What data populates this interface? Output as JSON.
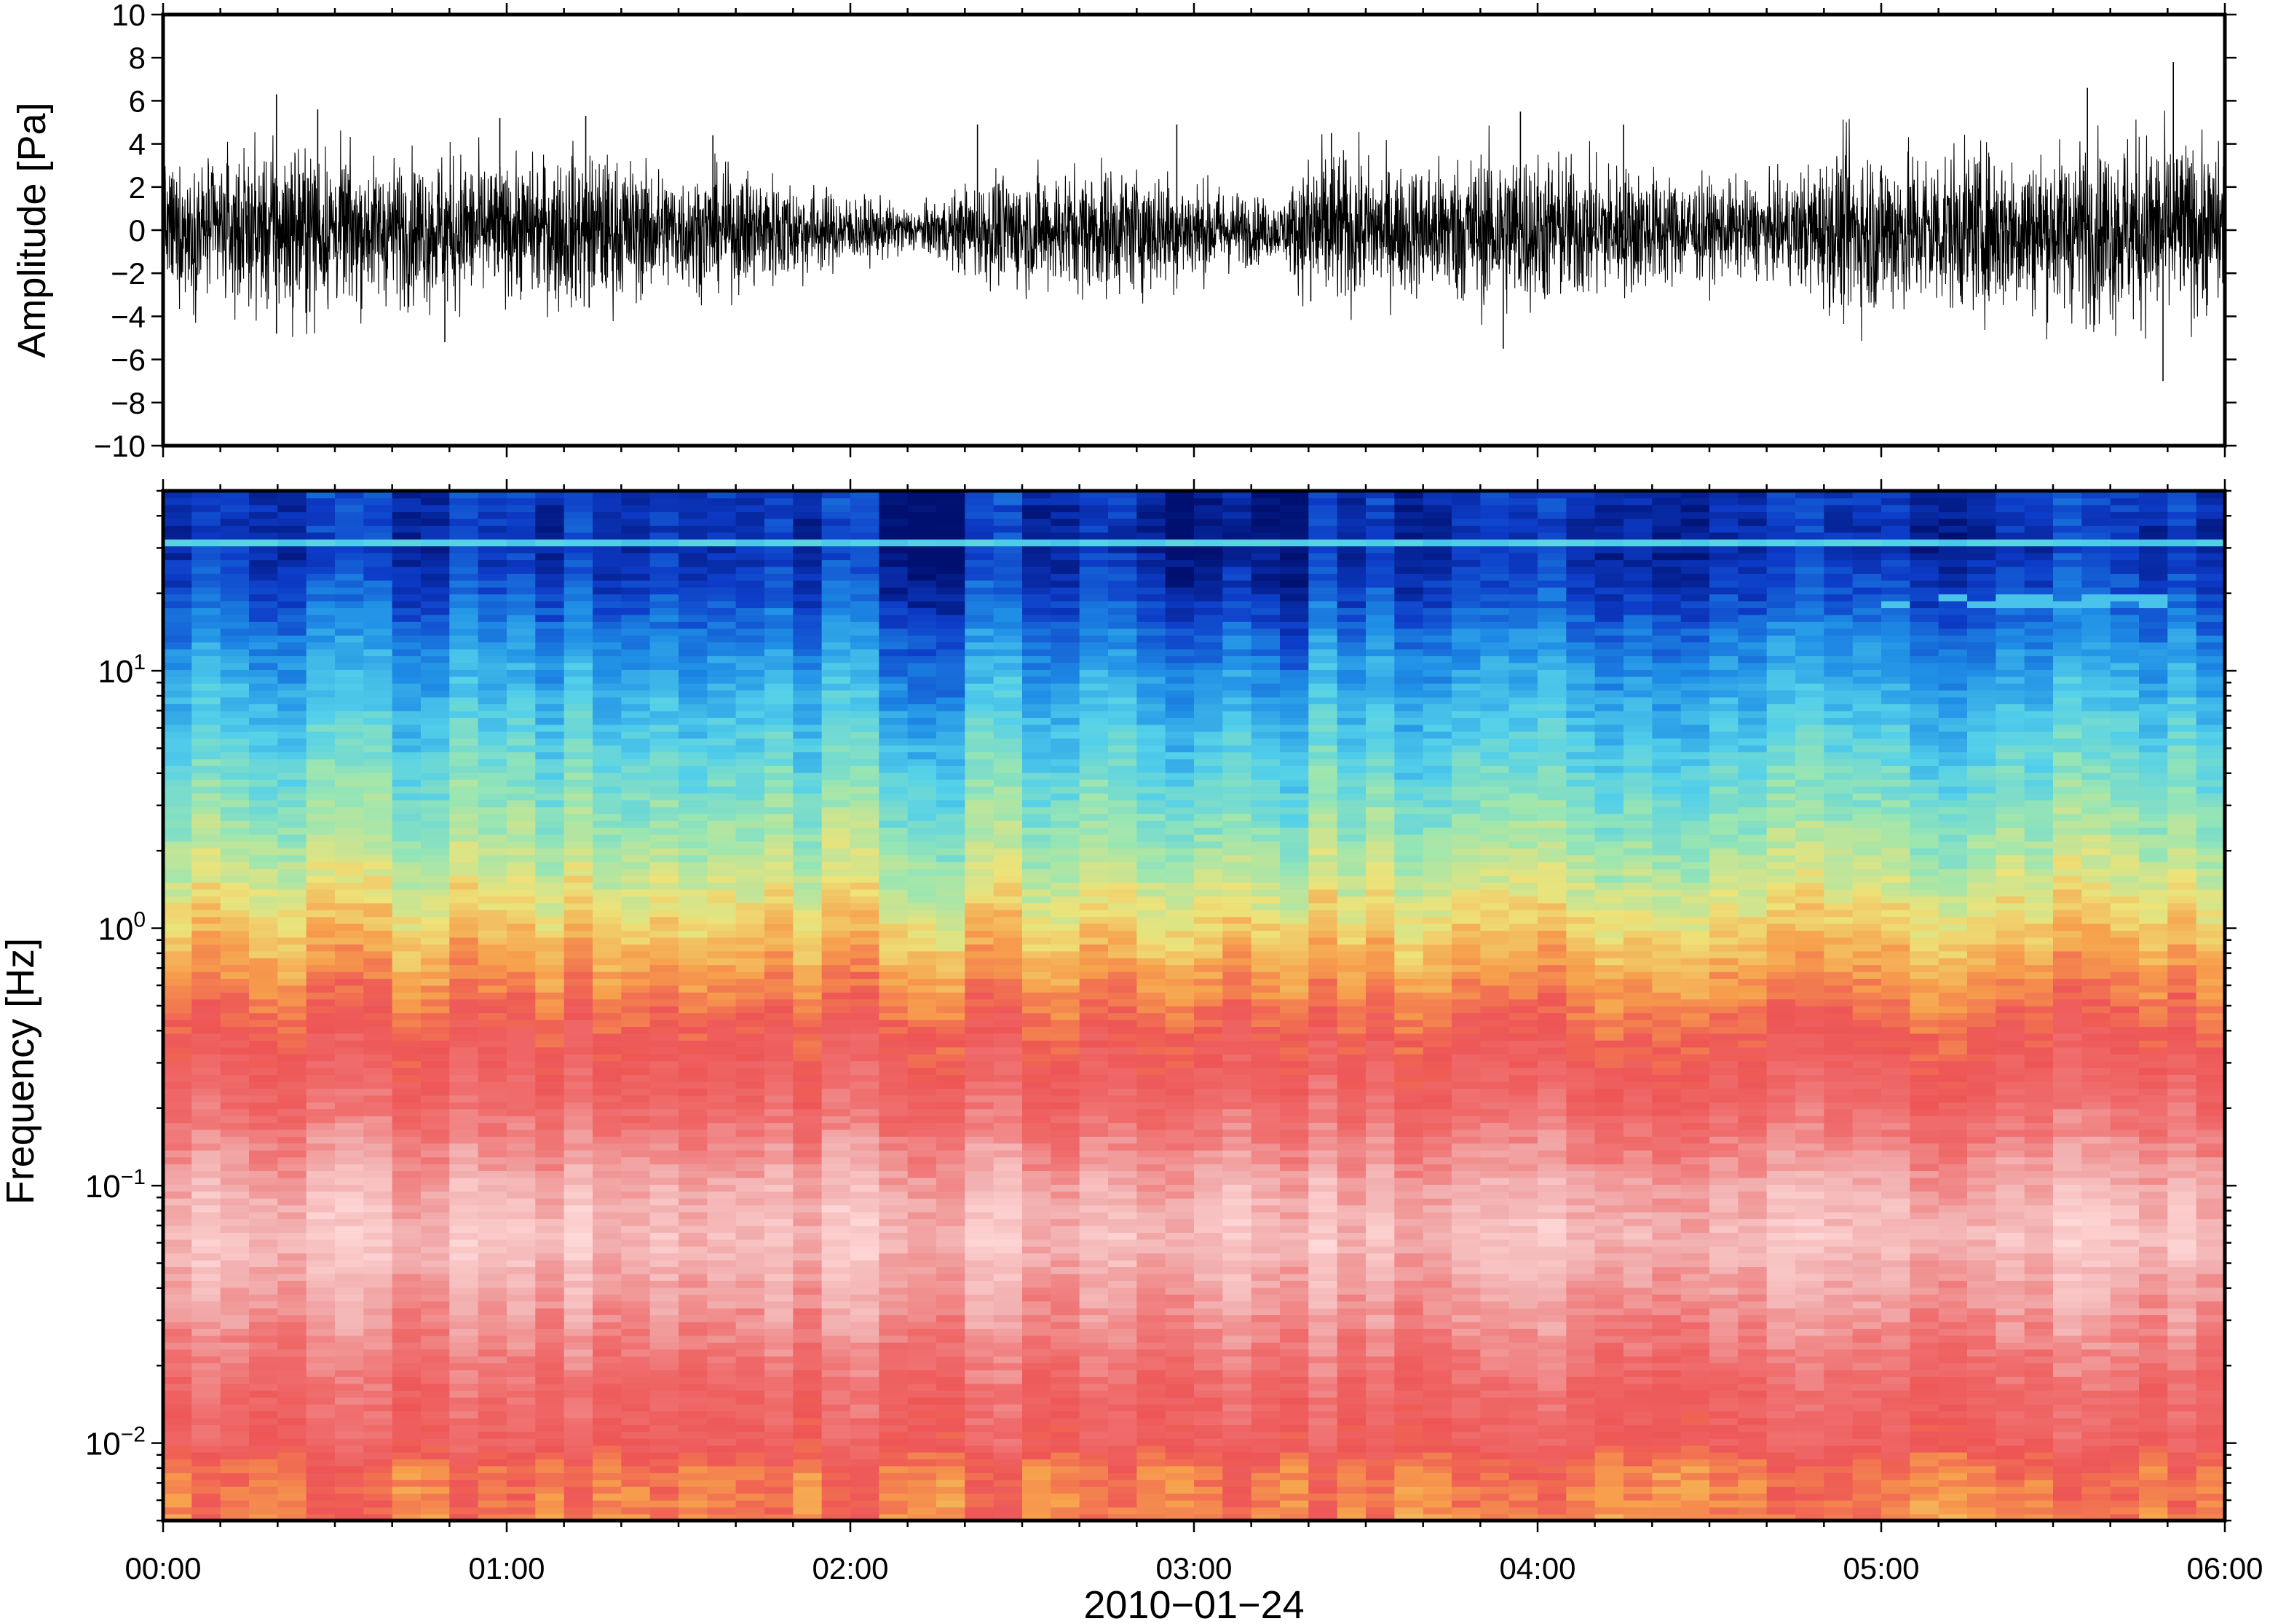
{
  "chart_data": [
    {
      "type": "line",
      "panel": "waveform",
      "ylabel": "Amplitude [Pa]",
      "ylim": [
        -10,
        10
      ],
      "yticks": [
        10,
        8,
        6,
        4,
        2,
        0,
        -2,
        -4,
        -6,
        -8,
        -10
      ],
      "ytick_labels": [
        "10",
        "8",
        "6",
        "4",
        "2",
        "0",
        "−2",
        "−4",
        "−6",
        "−8",
        "−10"
      ],
      "xlim_hours": [
        0,
        6
      ],
      "line_color": "#000000",
      "envelope_pa": [
        {
          "t": 0.0,
          "a": 2.6
        },
        {
          "t": 0.2,
          "a": 3.0
        },
        {
          "t": 0.4,
          "a": 3.6
        },
        {
          "t": 0.6,
          "a": 2.8
        },
        {
          "t": 0.85,
          "a": 3.2
        },
        {
          "t": 1.0,
          "a": 2.6
        },
        {
          "t": 1.2,
          "a": 3.3
        },
        {
          "t": 1.5,
          "a": 2.4
        },
        {
          "t": 1.75,
          "a": 2.4
        },
        {
          "t": 2.0,
          "a": 1.4
        },
        {
          "t": 2.2,
          "a": 0.9
        },
        {
          "t": 2.4,
          "a": 2.2
        },
        {
          "t": 2.7,
          "a": 2.6
        },
        {
          "t": 2.9,
          "a": 2.5
        },
        {
          "t": 3.1,
          "a": 1.7
        },
        {
          "t": 3.25,
          "a": 1.1
        },
        {
          "t": 3.35,
          "a": 3.4
        },
        {
          "t": 3.6,
          "a": 2.6
        },
        {
          "t": 3.9,
          "a": 3.4
        },
        {
          "t": 4.2,
          "a": 2.8
        },
        {
          "t": 4.5,
          "a": 2.0
        },
        {
          "t": 4.7,
          "a": 1.9
        },
        {
          "t": 4.9,
          "a": 3.6
        },
        {
          "t": 5.2,
          "a": 3.3
        },
        {
          "t": 5.5,
          "a": 3.4
        },
        {
          "t": 5.75,
          "a": 4.0
        },
        {
          "t": 6.0,
          "a": 3.2
        }
      ],
      "peaks": [
        {
          "t": 0.33,
          "pa": 6.3
        },
        {
          "t": 0.33,
          "pa": -4.8
        },
        {
          "t": 0.45,
          "pa": 5.6
        },
        {
          "t": 0.82,
          "pa": -5.2
        },
        {
          "t": 0.98,
          "pa": 5.2
        },
        {
          "t": 1.23,
          "pa": 5.3
        },
        {
          "t": 1.24,
          "pa": -3.6
        },
        {
          "t": 1.6,
          "pa": 4.4
        },
        {
          "t": 2.37,
          "pa": 4.9
        },
        {
          "t": 2.95,
          "pa": 4.9
        },
        {
          "t": 3.34,
          "pa": -3.3
        },
        {
          "t": 3.4,
          "pa": 4.5
        },
        {
          "t": 3.9,
          "pa": -5.5
        },
        {
          "t": 3.95,
          "pa": 5.5
        },
        {
          "t": 4.25,
          "pa": 4.9
        },
        {
          "t": 5.85,
          "pa": 7.8
        },
        {
          "t": 5.82,
          "pa": -7.0
        },
        {
          "t": 5.6,
          "pa": 6.6
        }
      ]
    },
    {
      "type": "heatmap",
      "panel": "spectrogram",
      "ylabel": "Frequency [Hz]",
      "yscale": "log",
      "ylim_hz": [
        0.005,
        50
      ],
      "ytick_labels": [
        {
          "value": 10,
          "base": "10",
          "exp": "1"
        },
        {
          "value": 1,
          "base": "10",
          "exp": "0"
        },
        {
          "value": 0.1,
          "base": "10",
          "exp": "−1"
        },
        {
          "value": 0.01,
          "base": "10",
          "exp": "−2"
        }
      ],
      "xlim_hours": [
        0,
        6
      ],
      "colormap": [
        "#ffd8d8",
        "#f2aeae",
        "#f07070",
        "#ee5555",
        "#f7a04c",
        "#ede379",
        "#9ae6b2",
        "#53d0ea",
        "#1f8fe6",
        "#0d3cc8",
        "#001070"
      ],
      "bands_log10_hz": [
        {
          "log10_hz": -2.3,
          "level": 0.36
        },
        {
          "log10_hz": -2.1,
          "level": 0.34
        },
        {
          "log10_hz": -2.0,
          "level": 0.26
        },
        {
          "log10_hz": -1.8,
          "level": 0.23
        },
        {
          "log10_hz": -1.5,
          "level": 0.14
        },
        {
          "log10_hz": -1.2,
          "level": 0.06
        },
        {
          "log10_hz": -1.0,
          "level": 0.1
        },
        {
          "log10_hz": -0.7,
          "level": 0.22
        },
        {
          "log10_hz": -0.4,
          "level": 0.3
        },
        {
          "log10_hz": -0.1,
          "level": 0.42
        },
        {
          "log10_hz": 0.2,
          "level": 0.54
        },
        {
          "log10_hz": 0.5,
          "level": 0.63
        },
        {
          "log10_hz": 0.8,
          "level": 0.71
        },
        {
          "log10_hz": 1.1,
          "level": 0.8
        },
        {
          "log10_hz": 1.3,
          "level": 0.88
        },
        {
          "log10_hz": 1.5,
          "level": 0.93
        },
        {
          "log10_hz": 1.7,
          "level": 0.91
        }
      ],
      "quiet_hours": [
        {
          "t0": 2.05,
          "t1": 2.3
        },
        {
          "t0": 2.95,
          "t1": 3.3
        }
      ],
      "persistent_lines_hz": [
        {
          "hz": 31.5,
          "level": 0.7
        }
      ],
      "intermittent_lines": [
        {
          "hz": 19.0,
          "t0": 4.97,
          "t1": 5.85,
          "level": 0.72
        }
      ]
    }
  ],
  "x_axis": {
    "tick_labels": [
      "00:00",
      "01:00",
      "02:00",
      "03:00",
      "04:00",
      "05:00",
      "06:00"
    ],
    "date_label": "2010−01−24"
  }
}
